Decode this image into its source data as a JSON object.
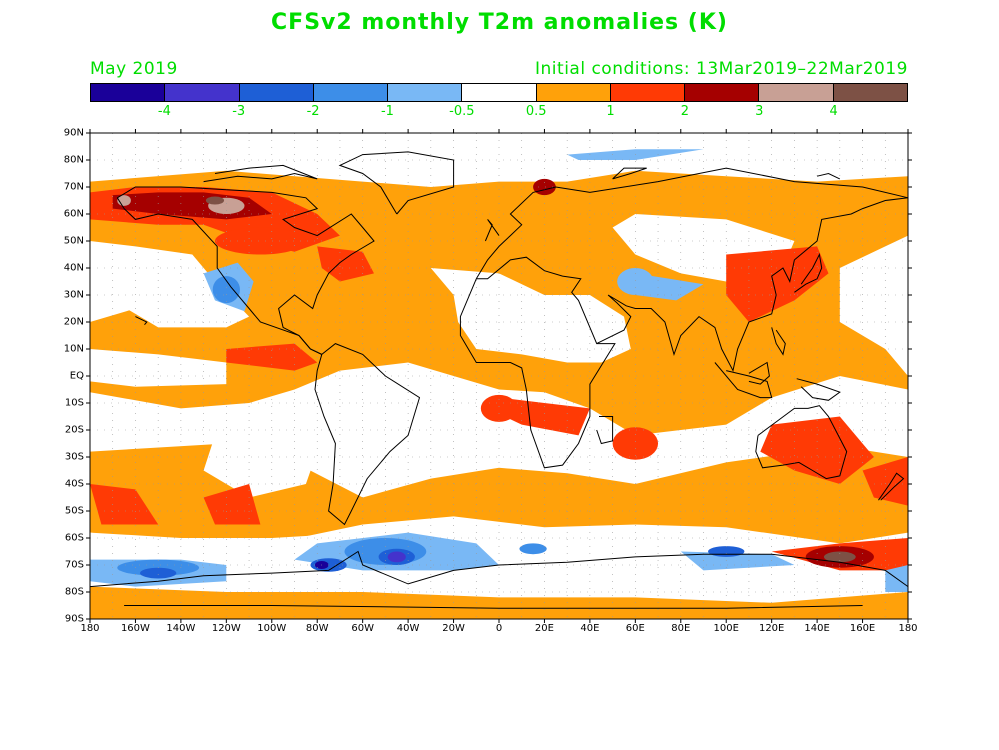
{
  "header": {
    "title": "CFSv2 monthly T2m anomalies (K)",
    "month": "May 2019",
    "initial_conditions": "Initial conditions: 13Mar2019–22Mar2019"
  },
  "colorbar": {
    "colors": [
      "#1a0099",
      "#4433cc",
      "#1e5fd6",
      "#3d8ee8",
      "#79b8f5",
      "#ffffff",
      "#ffa10a",
      "#ff3a05",
      "#a50000",
      "#c8a095",
      "#7d5145"
    ],
    "labels": [
      "-4",
      "-3",
      "-2",
      "-1",
      "-0.5",
      "0.5",
      "1",
      "2",
      "3",
      "4"
    ]
  },
  "axes": {
    "lat_labels": [
      "90N",
      "80N",
      "70N",
      "60N",
      "50N",
      "40N",
      "30N",
      "20N",
      "10N",
      "EQ",
      "10S",
      "20S",
      "30S",
      "40S",
      "50S",
      "60S",
      "70S",
      "80S",
      "90S"
    ],
    "lon_labels": [
      "180",
      "160W",
      "140W",
      "120W",
      "100W",
      "80W",
      "60W",
      "40W",
      "20W",
      "0",
      "20E",
      "40E",
      "60E",
      "80E",
      "100E",
      "120E",
      "140E",
      "160E",
      "180"
    ]
  },
  "map_colors": {
    "orange": "#ffa10a",
    "red": "#ff3a05",
    "darkred": "#a50000",
    "tan": "#c8a095",
    "brown": "#7d5145",
    "lightblue": "#79b8f5",
    "blue": "#3d8ee8",
    "medblue": "#1e5fd6",
    "violet": "#4433cc",
    "indigo": "#1a0099"
  }
}
